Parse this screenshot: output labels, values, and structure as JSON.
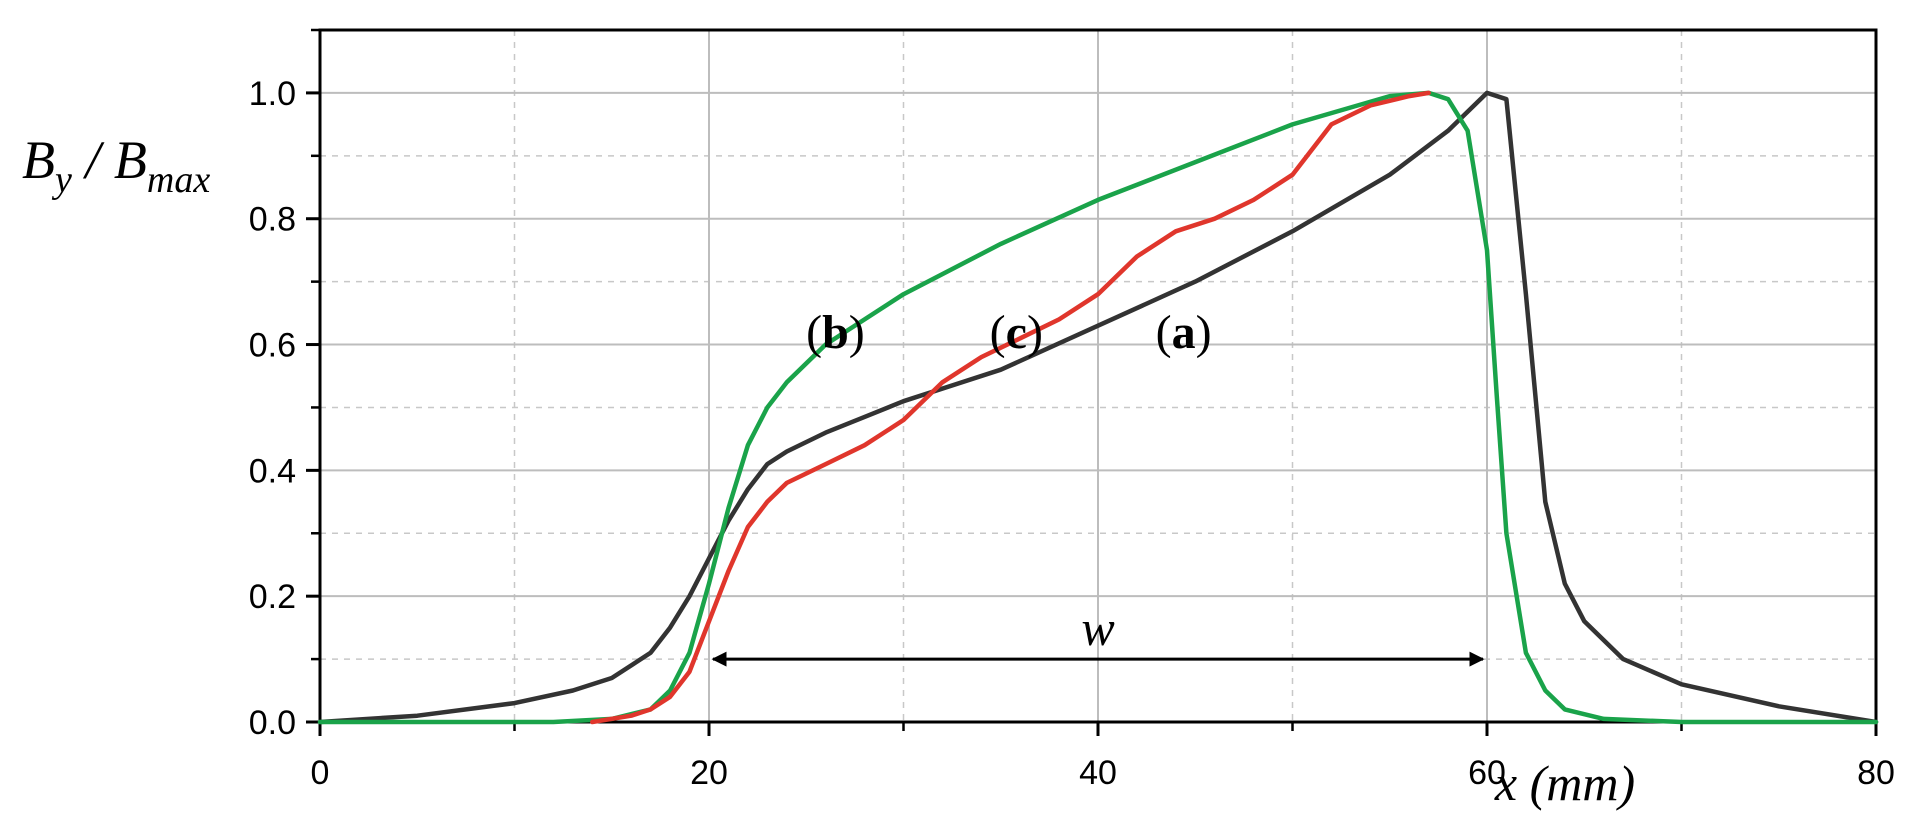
{
  "chart_data": {
    "type": "line",
    "title": "",
    "xlabel": "x (mm)",
    "ylabel": {
      "main": "B",
      "sub1": "y",
      "mid": " / B",
      "sub2": "max"
    },
    "xlim": [
      0,
      80
    ],
    "ylim": [
      0,
      1.1
    ],
    "xticks": [
      0,
      20,
      40,
      60,
      80
    ],
    "xtick_labels": [
      "0",
      "20",
      "40",
      "60",
      "80"
    ],
    "yticks": [
      0.0,
      0.2,
      0.4,
      0.6,
      0.8,
      1.0
    ],
    "ytick_labels": [
      "0.0",
      "0.2",
      "0.4",
      "0.6",
      "0.8",
      "1.0"
    ],
    "grid": true,
    "series": [
      {
        "name": "(a)",
        "color": "#333333",
        "x": [
          0,
          5,
          10,
          13,
          15,
          17,
          18,
          19,
          20,
          21,
          22,
          23,
          24,
          26,
          28,
          30,
          35,
          40,
          45,
          50,
          55,
          58,
          60,
          61,
          62,
          63,
          64,
          65,
          67,
          70,
          75,
          80
        ],
        "y": [
          0.0,
          0.01,
          0.03,
          0.05,
          0.07,
          0.11,
          0.15,
          0.2,
          0.26,
          0.32,
          0.37,
          0.41,
          0.43,
          0.46,
          0.485,
          0.51,
          0.56,
          0.63,
          0.7,
          0.78,
          0.87,
          0.94,
          1.0,
          0.99,
          0.68,
          0.35,
          0.22,
          0.16,
          0.1,
          0.06,
          0.025,
          0.0
        ]
      },
      {
        "name": "(b)",
        "color": "#1aa34a",
        "x": [
          0,
          12,
          15,
          17,
          18,
          19,
          20,
          21,
          22,
          23,
          24,
          26,
          28,
          30,
          35,
          40,
          45,
          50,
          55,
          57,
          58,
          59,
          60,
          60.5,
          61,
          62,
          63,
          64,
          66,
          70,
          80
        ],
        "y": [
          0.0,
          0.0,
          0.005,
          0.02,
          0.05,
          0.11,
          0.22,
          0.34,
          0.44,
          0.5,
          0.54,
          0.6,
          0.64,
          0.68,
          0.76,
          0.83,
          0.89,
          0.95,
          0.995,
          1.0,
          0.99,
          0.94,
          0.75,
          0.52,
          0.3,
          0.11,
          0.05,
          0.02,
          0.005,
          0.0,
          0.0
        ]
      },
      {
        "name": "(c)",
        "color": "#e0362c",
        "x": [
          14,
          16,
          17,
          18,
          19,
          20,
          21,
          22,
          23,
          24,
          26,
          28,
          30,
          32,
          34,
          36,
          38,
          40,
          42,
          44,
          46,
          48,
          50,
          52,
          54,
          56,
          57
        ],
        "y": [
          0.0,
          0.01,
          0.02,
          0.04,
          0.08,
          0.16,
          0.24,
          0.31,
          0.35,
          0.38,
          0.41,
          0.44,
          0.48,
          0.54,
          0.58,
          0.61,
          0.64,
          0.68,
          0.74,
          0.78,
          0.8,
          0.83,
          0.87,
          0.95,
          0.98,
          0.995,
          1.0
        ]
      }
    ],
    "curve_labels": [
      {
        "open": "(",
        "letter": "b",
        "close": ")",
        "x": 26.5,
        "y": 0.62
      },
      {
        "open": "(",
        "letter": "c",
        "close": ")",
        "x": 35.8,
        "y": 0.62
      },
      {
        "open": "(",
        "letter": "a",
        "close": ")",
        "x": 44.4,
        "y": 0.62
      }
    ],
    "annotation_w": {
      "label": "w",
      "x_start": 20,
      "x_end": 60,
      "y": 0.1
    }
  }
}
